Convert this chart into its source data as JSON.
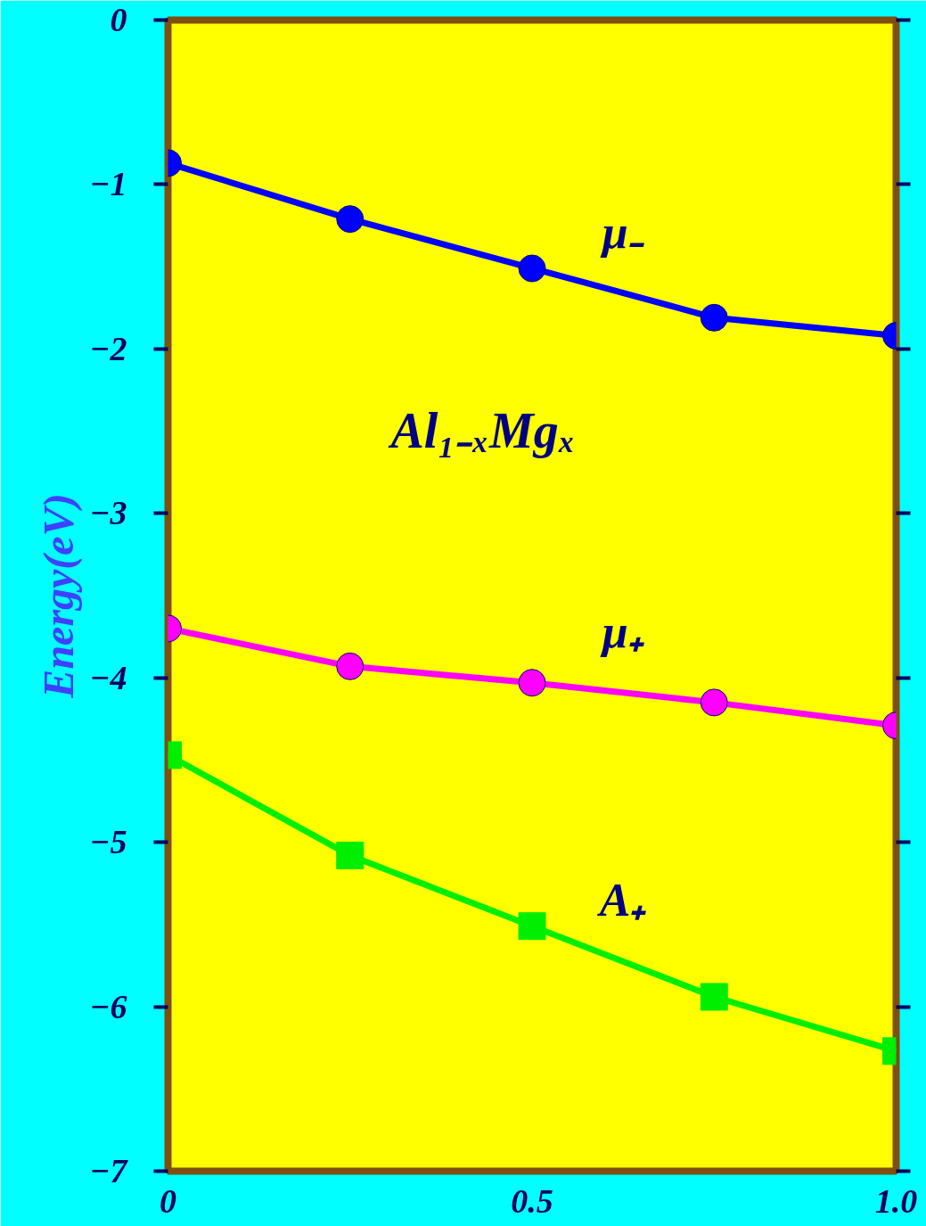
{
  "chart_data": {
    "type": "line",
    "ylabel": "Energy(eV)",
    "x": [
      0,
      0.25,
      0.5,
      0.75,
      1.0
    ],
    "series": [
      {
        "name": "μ₋",
        "color": "#0000ff",
        "marker": "circle",
        "values": [
          -0.87,
          -1.21,
          -1.51,
          -1.81,
          -1.92
        ]
      },
      {
        "name": "μ₊",
        "color": "#ff00ff",
        "marker": "circle",
        "values": [
          -3.7,
          -3.93,
          -4.03,
          -4.15,
          -4.29
        ]
      },
      {
        "name": "A₊",
        "color": "#00ee00",
        "marker": "square",
        "values": [
          -4.47,
          -5.08,
          -5.51,
          -5.94,
          -6.27
        ]
      }
    ],
    "annotations": [
      "Al₁₋ₓMgₓ"
    ],
    "xlim": [
      0,
      1.0
    ],
    "ylim": [
      -7,
      0
    ],
    "xticks": [
      0,
      0.5,
      {
        "value": 1.0,
        "label": "1.0"
      }
    ],
    "yticks": [
      0,
      {
        "value": -1,
        "label": "−1"
      },
      {
        "value": -2,
        "label": "−2"
      },
      {
        "value": -3,
        "label": "−3"
      },
      {
        "value": -4,
        "label": "−4"
      },
      {
        "value": -5,
        "label": "−5"
      },
      {
        "value": -6,
        "label": "−6"
      },
      {
        "value": -7,
        "label": "−7"
      }
    ],
    "grid": false,
    "line_style": "solid"
  }
}
